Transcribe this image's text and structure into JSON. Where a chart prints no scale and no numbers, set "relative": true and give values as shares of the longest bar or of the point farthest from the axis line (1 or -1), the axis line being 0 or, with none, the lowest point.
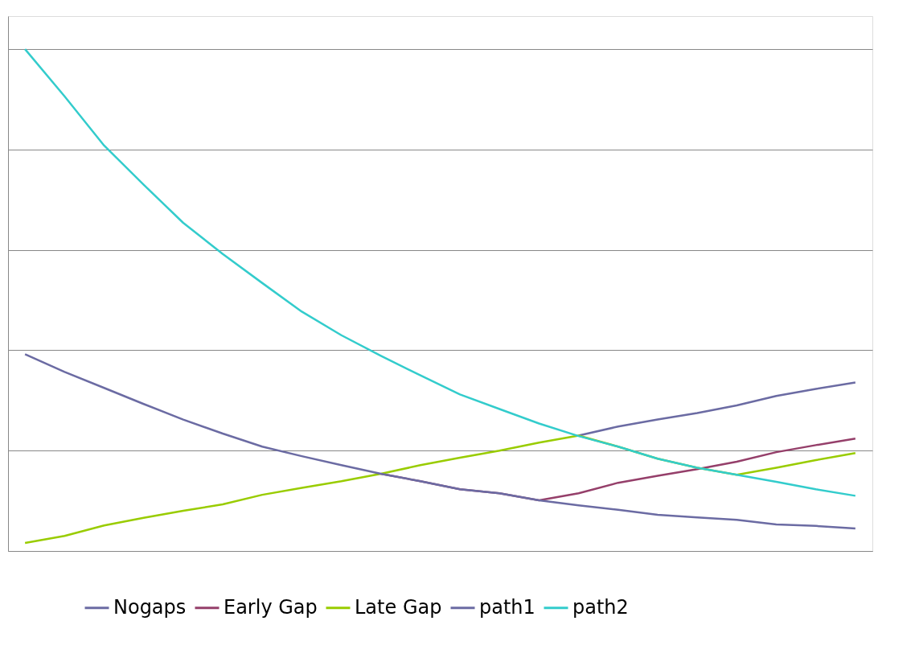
{
  "chart_data": {
    "type": "line",
    "relative": true,
    "grid": "y",
    "legend": "bottom",
    "marker": "none",
    "line_style": "solid",
    "categories": [
      null,
      null,
      null,
      null,
      null,
      null,
      null,
      null,
      null,
      null,
      null,
      null,
      null,
      null,
      null,
      null,
      null,
      null,
      null,
      null,
      null,
      null
    ],
    "series": [
      {
        "name": "Nogaps",
        "color": "#6b6ba3",
        "values": [
          null,
          null,
          null,
          null,
          null,
          null,
          null,
          null,
          null,
          null,
          null,
          null,
          null,
          null,
          0.23,
          0.248,
          0.262,
          0.275,
          0.29,
          0.309,
          0.323,
          0.336
        ]
      },
      {
        "name": "Early Gap",
        "color": "#953f6a",
        "values": [
          null,
          null,
          null,
          null,
          null,
          null,
          null,
          null,
          null,
          0.154,
          0.139,
          0.123,
          0.115,
          0.101,
          0.115,
          0.136,
          0.15,
          0.163,
          0.178,
          0.197,
          0.211,
          0.224
        ]
      },
      {
        "name": "Late Gap",
        "color": "#99cc00",
        "values": [
          0.016,
          0.03,
          0.051,
          0.066,
          0.08,
          0.093,
          0.112,
          0.126,
          0.139,
          0.154,
          0.171,
          0.186,
          0.2,
          0.216,
          0.23,
          0.208,
          0.184,
          0.166,
          0.152,
          0.166,
          0.181,
          0.195
        ]
      },
      {
        "name": "path1",
        "color": "#6b6ba3",
        "values": [
          0.392,
          0.357,
          0.325,
          0.293,
          0.262,
          0.234,
          0.208,
          0.189,
          0.171,
          0.154,
          0.139,
          0.123,
          0.115,
          0.101,
          0.091,
          0.082,
          0.072,
          0.067,
          0.062,
          0.053,
          0.05,
          0.045
        ]
      },
      {
        "name": "path2",
        "color": "#33cccc",
        "values": [
          1,
          0.906,
          0.808,
          0.73,
          0.654,
          0.592,
          0.534,
          0.477,
          0.43,
          0.389,
          0.35,
          0.312,
          0.283,
          0.254,
          0.229,
          0.208,
          0.184,
          0.166,
          0.152,
          0.138,
          0.123,
          0.11
        ]
      }
    ]
  }
}
